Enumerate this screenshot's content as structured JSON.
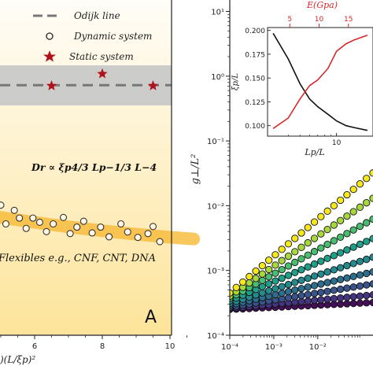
{
  "chart_data": [
    {
      "panel_label": "A",
      "type": "scatter",
      "legend": [
        {
          "label": "Odijk line",
          "marker": "dashed-line",
          "color": "#8a8a8a"
        },
        {
          "label": "Dynamic system",
          "marker": "open-circle",
          "color": "#222222"
        },
        {
          "label": "Static system",
          "marker": "star",
          "color": "#b0121d"
        }
      ],
      "legend_placement": "top-right",
      "annotation_formula": "Dr ∝ ξp4/3 Lp−1/3 L−4",
      "annotation_flexibles": "Flexibles e.g., CNF, CNT, DNA",
      "xlabel": ")(L/ξp)²",
      "xticks": [
        "6",
        "8",
        "10"
      ],
      "xlim": [
        3.05,
        10.7
      ],
      "background_gradient": [
        "#fffdf8",
        "#fde49a"
      ],
      "odijk_band": {
        "color": "#c9c9c9"
      },
      "dynamic_points": [
        [
          3.05,
          2.0
        ],
        [
          3.3,
          2.03
        ],
        [
          3.5,
          2.2
        ],
        [
          3.6,
          1.85
        ],
        [
          3.85,
          1.98
        ],
        [
          4.0,
          2.14
        ],
        [
          4.15,
          1.72
        ],
        [
          4.35,
          2.05
        ],
        [
          4.5,
          1.6
        ],
        [
          4.6,
          1.95
        ],
        [
          4.85,
          1.78
        ],
        [
          5.0,
          2.08
        ],
        [
          5.15,
          1.5
        ],
        [
          5.4,
          1.92
        ],
        [
          5.55,
          1.68
        ],
        [
          5.75,
          1.36
        ],
        [
          5.95,
          1.68
        ],
        [
          6.15,
          1.55
        ],
        [
          6.35,
          1.26
        ],
        [
          6.55,
          1.5
        ],
        [
          6.85,
          1.7
        ],
        [
          7.05,
          1.2
        ],
        [
          7.25,
          1.4
        ],
        [
          7.45,
          1.58
        ],
        [
          7.7,
          1.22
        ],
        [
          7.95,
          1.4
        ],
        [
          8.2,
          1.1
        ],
        [
          8.55,
          1.5
        ],
        [
          8.75,
          1.25
        ],
        [
          9.05,
          1.08
        ],
        [
          9.35,
          1.2
        ],
        [
          9.5,
          1.42
        ],
        [
          9.7,
          0.95
        ]
      ],
      "static_points": [
        [
          6.5,
          5.78
        ],
        [
          8.0,
          6.15
        ],
        [
          9.5,
          5.78
        ]
      ],
      "odijk_value": 5.8
    },
    {
      "panel_label": "",
      "type": "line",
      "xscale": "log",
      "yscale": "log",
      "xlim": [
        0.0001,
        0.18
      ],
      "ylim": [
        0.0001,
        15
      ],
      "ylabel": "g⊥/L²",
      "xticks": [
        "10⁻⁴",
        "10⁻³",
        "10⁻²"
      ],
      "yticks": [
        "10⁻⁴",
        "10⁻³",
        "10⁻²",
        "10⁻¹",
        "10⁰",
        "10¹"
      ],
      "series": [
        {
          "color": "#f6e61c",
          "values": [
            [
              0.0001,
              0.00045
            ],
            [
              0.18,
              0.032
            ]
          ]
        },
        {
          "color": "#a6d83a",
          "values": [
            [
              0.0001,
              0.0004
            ],
            [
              0.18,
              0.013
            ]
          ]
        },
        {
          "color": "#48bf6e",
          "values": [
            [
              0.0001,
              0.00037
            ],
            [
              0.18,
              0.0062
            ]
          ]
        },
        {
          "color": "#1fa089",
          "values": [
            [
              0.0001,
              0.00034
            ],
            [
              0.18,
              0.0031
            ]
          ]
        },
        {
          "color": "#238a8d",
          "values": [
            [
              0.0001,
              0.00031
            ],
            [
              0.18,
              0.0016
            ]
          ]
        },
        {
          "color": "#2d6d8e",
          "values": [
            [
              0.0001,
              0.00029
            ],
            [
              0.18,
              0.00095
            ]
          ]
        },
        {
          "color": "#39538b",
          "values": [
            [
              0.0001,
              0.00027
            ],
            [
              0.18,
              0.00062
            ]
          ]
        },
        {
          "color": "#453581",
          "values": [
            [
              0.0001,
              0.00026
            ],
            [
              0.18,
              0.00042
            ]
          ]
        },
        {
          "color": "#440f58",
          "values": [
            [
              0.0001,
              0.00025
            ],
            [
              0.18,
              0.00032
            ]
          ]
        }
      ],
      "inset": {
        "ylabel": "ξp/L",
        "xlabel": "Lp/L",
        "top_xlabel": "E(Gpa)",
        "ylim": [
          0.09,
          0.2
        ],
        "yticks": [
          "0.100",
          "0.125",
          "0.150",
          "0.175",
          "0.200"
        ],
        "xticks": [
          "10"
        ],
        "top_xticks": [
          "5",
          "10",
          "15"
        ],
        "top_axis_color": "#d62728",
        "black_curve": [
          [
            3.0,
            0.197
          ],
          [
            4.0,
            0.17
          ],
          [
            5.0,
            0.144
          ],
          [
            6.0,
            0.128
          ],
          [
            7.0,
            0.12
          ],
          [
            8.5,
            0.112
          ],
          [
            10.0,
            0.105
          ],
          [
            12.0,
            0.1
          ],
          [
            14.0,
            0.098
          ],
          [
            18.0,
            0.095
          ]
        ],
        "red_curve": [
          [
            3.0,
            0.097
          ],
          [
            4.0,
            0.108
          ],
          [
            5.0,
            0.128
          ],
          [
            6.0,
            0.142
          ],
          [
            7.0,
            0.148
          ],
          [
            8.5,
            0.16
          ],
          [
            10.0,
            0.178
          ],
          [
            12.0,
            0.186
          ],
          [
            14.0,
            0.19
          ],
          [
            18.0,
            0.195
          ]
        ]
      }
    }
  ]
}
